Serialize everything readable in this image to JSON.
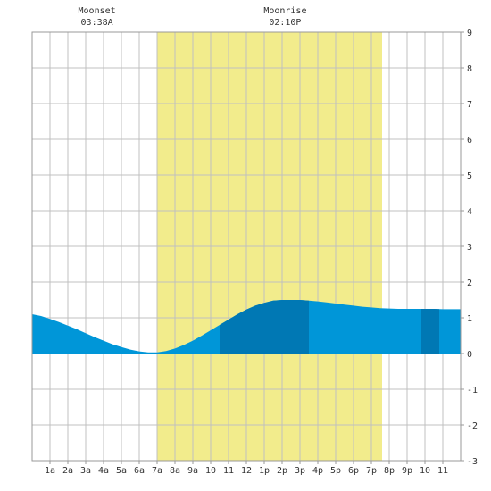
{
  "chart_data": {
    "type": "area",
    "x_tick_labels": [
      "1a",
      "2a",
      "3a",
      "4a",
      "5a",
      "6a",
      "7a",
      "8a",
      "9a",
      "10",
      "11",
      "12",
      "1p",
      "2p",
      "3p",
      "4p",
      "5p",
      "6p",
      "7p",
      "8p",
      "9p",
      "10",
      "11"
    ],
    "y_ticks": [
      -3,
      -2,
      -1,
      0,
      1,
      2,
      3,
      4,
      5,
      6,
      7,
      8,
      9
    ],
    "xlim": [
      0,
      24
    ],
    "ylim": [
      -3,
      9
    ],
    "grid": true,
    "daylight": {
      "start": 7.0,
      "end": 19.6
    },
    "moon_events": [
      {
        "label": "Moonset",
        "time": "03:38A",
        "hour": 3.63
      },
      {
        "label": "Moonrise",
        "time": "02:10P",
        "hour": 14.17
      }
    ],
    "series": [
      {
        "x": [
          0,
          0.5,
          1,
          1.5,
          2,
          2.5,
          3,
          3.5,
          4,
          4.5,
          5,
          5.5,
          6,
          6.5,
          7,
          7.5,
          8,
          8.5,
          9,
          9.5,
          10,
          10.5,
          11,
          11.5,
          12,
          12.5,
          13,
          13.5,
          14,
          14.5,
          15,
          15.5,
          16,
          16.5,
          17,
          17.5,
          18,
          18.5,
          19,
          19.5,
          20,
          20.5,
          21,
          21.5,
          22,
          22.5,
          23,
          23.5,
          24
        ],
        "values": [
          1.1,
          1.05,
          0.97,
          0.88,
          0.78,
          0.68,
          0.57,
          0.46,
          0.36,
          0.26,
          0.18,
          0.11,
          0.06,
          0.03,
          0.03,
          0.07,
          0.14,
          0.24,
          0.36,
          0.5,
          0.65,
          0.8,
          0.95,
          1.1,
          1.23,
          1.34,
          1.42,
          1.48,
          1.5,
          1.5,
          1.5,
          1.48,
          1.46,
          1.43,
          1.4,
          1.37,
          1.34,
          1.31,
          1.29,
          1.27,
          1.26,
          1.25,
          1.25,
          1.25,
          1.25,
          1.25,
          1.24,
          1.24,
          1.24
        ]
      }
    ],
    "highlight_bands": [
      {
        "start": 10.5,
        "end": 15.5
      },
      {
        "start": 21.8,
        "end": 22.8
      }
    ],
    "colors": {
      "daylight": "#f2ec8c",
      "area": "#0096d8",
      "highlight": "#0078b4",
      "grid": "#c0c0c0",
      "axis": "#999999",
      "text": "#333333",
      "background": "#ffffff"
    }
  }
}
